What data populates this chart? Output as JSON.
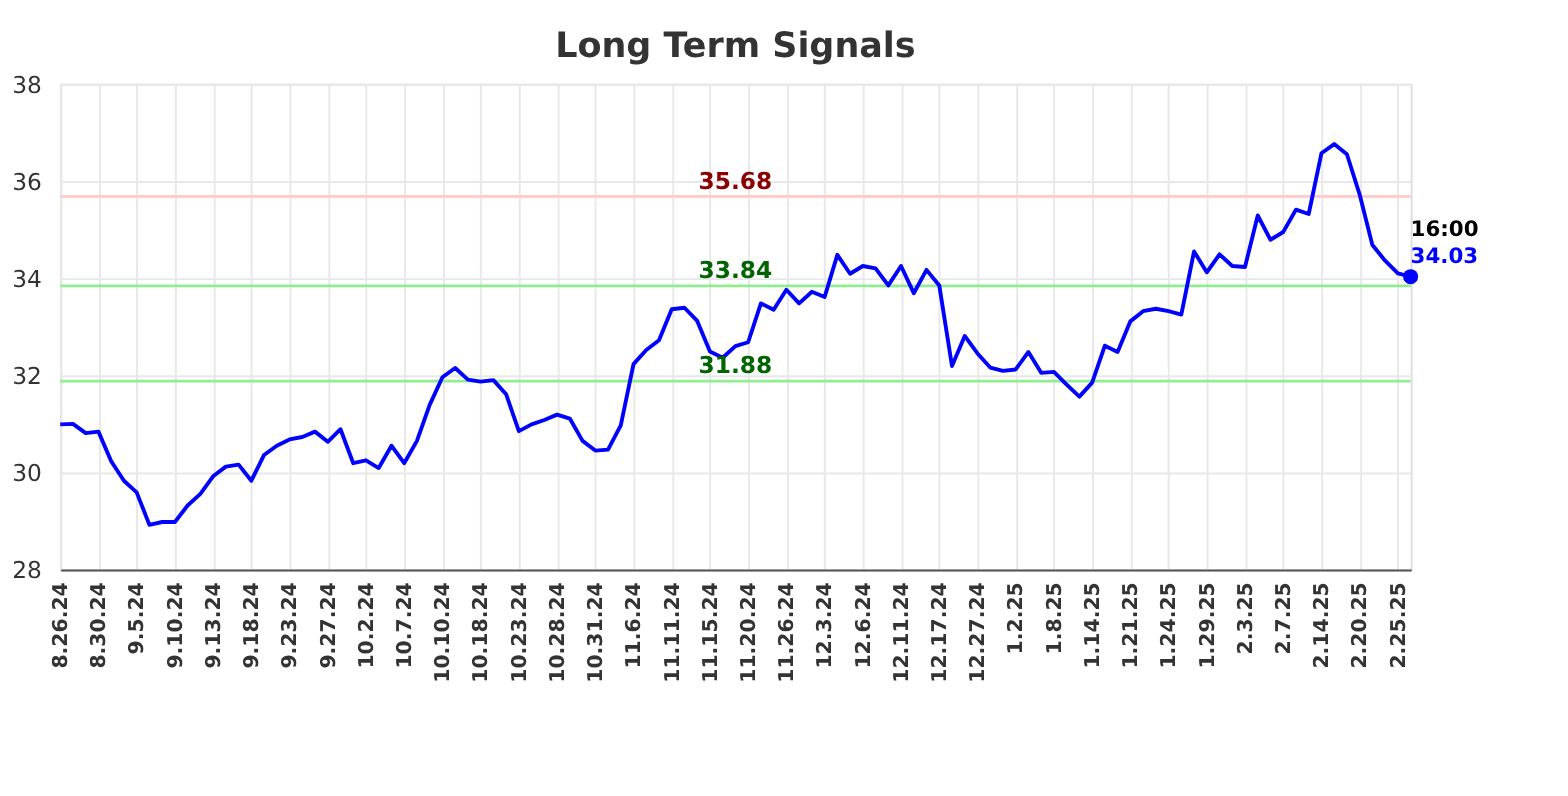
{
  "chart_data": {
    "type": "line",
    "title": "Long Term Signals",
    "categories": [
      "8.26.24",
      null,
      null,
      "8.30.24",
      null,
      null,
      "9.5.24",
      null,
      null,
      "9.10.24",
      null,
      null,
      "9.13.24",
      null,
      null,
      "9.18.24",
      null,
      null,
      "9.23.24",
      null,
      null,
      "9.27.24",
      null,
      null,
      "10.2.24",
      null,
      null,
      "10.7.24",
      null,
      null,
      "10.10.24",
      null,
      null,
      "10.18.24",
      null,
      null,
      "10.23.24",
      null,
      null,
      "10.28.24",
      null,
      null,
      "10.31.24",
      null,
      null,
      "11.6.24",
      null,
      null,
      "11.11.24",
      null,
      null,
      "11.15.24",
      null,
      null,
      "11.20.24",
      null,
      null,
      "11.26.24",
      null,
      null,
      "12.3.24",
      null,
      null,
      "12.6.24",
      null,
      null,
      "12.11.24",
      null,
      null,
      "12.17.24",
      null,
      null,
      "12.27.24",
      null,
      null,
      "1.2.25",
      null,
      null,
      "1.8.25",
      null,
      null,
      "1.14.25",
      null,
      null,
      "1.21.25",
      null,
      null,
      "1.24.25",
      null,
      null,
      "1.29.25",
      null,
      null,
      "2.3.25",
      null,
      null,
      "2.7.25",
      null,
      null,
      "2.14.25",
      null,
      null,
      "2.20.25",
      null,
      null,
      "2.25.25",
      null
    ],
    "series": [
      {
        "color": "#0000ff",
        "values": [
          30.99,
          31.0,
          30.81,
          30.84,
          30.23,
          29.83,
          29.59,
          28.92,
          28.98,
          28.98,
          29.32,
          29.56,
          29.92,
          30.12,
          30.16,
          29.83,
          30.36,
          30.55,
          30.68,
          30.73,
          30.84,
          30.63,
          30.89,
          30.19,
          30.25,
          30.09,
          30.55,
          30.19,
          30.65,
          31.39,
          31.96,
          32.15,
          31.91,
          31.87,
          31.9,
          31.61,
          30.85,
          30.99,
          31.08,
          31.19,
          31.11,
          30.65,
          30.45,
          30.47,
          30.97,
          32.23,
          32.52,
          32.72,
          33.36,
          33.39,
          33.12,
          32.49,
          32.36,
          32.6,
          32.68,
          33.48,
          33.35,
          33.76,
          33.48,
          33.72,
          33.61,
          34.48,
          34.09,
          34.25,
          34.2,
          33.85,
          34.25,
          33.69,
          34.17,
          33.85,
          32.19,
          32.81,
          32.45,
          32.16,
          32.09,
          32.12,
          32.48,
          32.05,
          32.07,
          31.81,
          31.56,
          31.85,
          32.61,
          32.48,
          33.11,
          33.32,
          33.37,
          33.32,
          33.25,
          34.55,
          34.12,
          34.49,
          34.25,
          34.23,
          35.29,
          34.79,
          34.95,
          35.41,
          35.32,
          36.57,
          36.76,
          36.55,
          35.72,
          34.68,
          34.36,
          34.1,
          34.03
        ]
      },
      {
        "type": "scatter",
        "color": "#0000ff",
        "values": [
          null,
          null,
          null,
          null,
          null,
          null,
          null,
          null,
          null,
          null,
          null,
          null,
          null,
          null,
          null,
          null,
          null,
          null,
          null,
          null,
          null,
          null,
          null,
          null,
          null,
          null,
          null,
          null,
          null,
          null,
          null,
          null,
          null,
          null,
          null,
          null,
          null,
          null,
          null,
          null,
          null,
          null,
          null,
          null,
          null,
          null,
          null,
          null,
          null,
          null,
          null,
          null,
          null,
          null,
          null,
          null,
          null,
          null,
          null,
          null,
          null,
          null,
          null,
          null,
          null,
          null,
          null,
          null,
          null,
          null,
          null,
          null,
          null,
          null,
          null,
          null,
          null,
          null,
          null,
          null,
          null,
          null,
          null,
          null,
          null,
          null,
          null,
          null,
          null,
          null,
          null,
          null,
          null,
          null,
          null,
          null,
          null,
          null,
          null,
          null,
          null,
          null,
          null,
          null,
          null,
          null,
          34.03
        ]
      }
    ],
    "ylim": [
      28,
      38
    ],
    "yticks": [
      28,
      30,
      32,
      34,
      36,
      38
    ],
    "grid": true,
    "ref_lines": [
      {
        "axis": "y",
        "value": 35.68,
        "label": "35.68",
        "color": "#ffcccc"
      },
      {
        "axis": "y",
        "value": 33.84,
        "label": "33.84",
        "color": "#90ee90"
      },
      {
        "axis": "y",
        "value": 31.88,
        "label": "31.88",
        "color": "#90ee90"
      }
    ],
    "annotations": [
      "16:00",
      "34.03"
    ]
  }
}
